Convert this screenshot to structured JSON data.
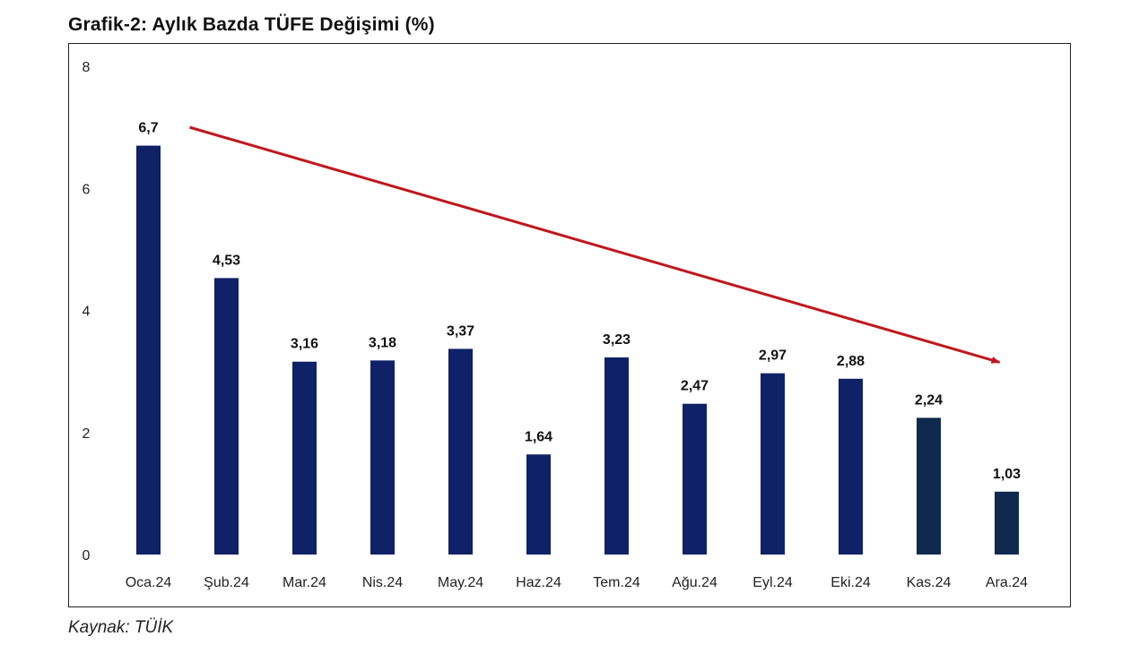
{
  "chart_data": {
    "type": "bar",
    "title": "Grafik-2: Aylık Bazda TÜFE Değişimi (%)",
    "xlabel": "",
    "ylabel": "",
    "ylim": [
      0,
      8
    ],
    "yticks": [
      0,
      2,
      4,
      6,
      8
    ],
    "grid": false,
    "legend": "none",
    "categories": [
      "Oca.24",
      "Şub.24",
      "Mar.24",
      "Nis.24",
      "May.24",
      "Haz.24",
      "Tem.24",
      "Ağu.24",
      "Eyl.24",
      "Eki.24",
      "Kas.24",
      "Ara.24"
    ],
    "values": [
      6.7,
      4.53,
      3.16,
      3.18,
      3.37,
      1.64,
      3.23,
      2.47,
      2.97,
      2.88,
      2.24,
      1.03
    ],
    "value_labels": [
      "6,7",
      "4,53",
      "3,16",
      "3,18",
      "3,37",
      "1,64",
      "3,23",
      "2,47",
      "2,97",
      "2,88",
      "2,24",
      "1,03"
    ],
    "bar_colors": [
      "#0f2167",
      "#0f2167",
      "#0f2167",
      "#0f2167",
      "#0f2167",
      "#0f2167",
      "#0f2167",
      "#0f2167",
      "#0f2167",
      "#0f2167",
      "#0f2a4e",
      "#0f2a4e"
    ],
    "annotations": [
      {
        "type": "trend-arrow",
        "from": {
          "category": "Oca.24",
          "value": 7.0
        },
        "to": {
          "category": "Ara.24",
          "value": 3.15
        },
        "color": "#c0171c"
      }
    ]
  },
  "source": "Kaynak: TÜİK",
  "colors": {
    "axis_text": "#222222",
    "label_text": "#111111",
    "trend_arrow": "#c0171c"
  }
}
